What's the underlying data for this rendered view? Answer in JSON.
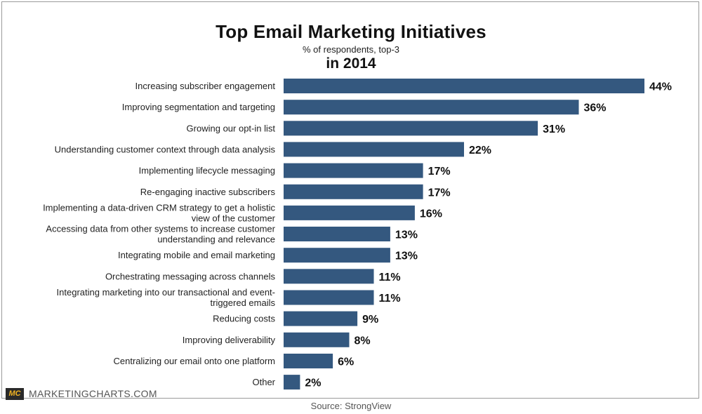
{
  "header": {
    "title": "Top Email Marketing Initiatives",
    "subtitle": "% of respondents, top-3",
    "subtitle2": "in 2014"
  },
  "footer": {
    "logo_text": "MC",
    "brand": "MARKETINGCHARTS.COM",
    "source": "Source: StrongView"
  },
  "colors": {
    "bar": "#34587f"
  },
  "chart_data": {
    "type": "bar",
    "orientation": "horizontal",
    "title": "Top Email Marketing Initiatives",
    "subtitle": "% of respondents, top-3",
    "xlabel": "",
    "ylabel": "",
    "xlim": [
      0,
      44
    ],
    "grid": false,
    "categories": [
      [
        "Increasing subscriber engagement"
      ],
      [
        "Improving segmentation and targeting"
      ],
      [
        "Growing our opt-in list"
      ],
      [
        "Understanding customer context through data analysis"
      ],
      [
        "Implementing lifecycle messaging"
      ],
      [
        "Re-engaging inactive subscribers"
      ],
      [
        "Implementing a data-driven CRM strategy to get a holistic",
        "view of the customer"
      ],
      [
        "Accessing data from other systems to increase customer",
        "understanding and relevance"
      ],
      [
        "Integrating mobile and email marketing"
      ],
      [
        "Orchestrating messaging across channels"
      ],
      [
        "Integrating marketing into our transactional and event-",
        "triggered emails"
      ],
      [
        "Reducing costs"
      ],
      [
        "Improving deliverability"
      ],
      [
        "Centralizing our email onto one platform"
      ],
      [
        "Other"
      ]
    ],
    "values": [
      44,
      36,
      31,
      22,
      17,
      17,
      16,
      13,
      13,
      11,
      11,
      9,
      8,
      6,
      2
    ],
    "value_labels": [
      "44%",
      "36%",
      "31%",
      "22%",
      "17%",
      "17%",
      "16%",
      "13%",
      "13%",
      "11%",
      "11%",
      "9%",
      "8%",
      "6%",
      "2%"
    ]
  }
}
